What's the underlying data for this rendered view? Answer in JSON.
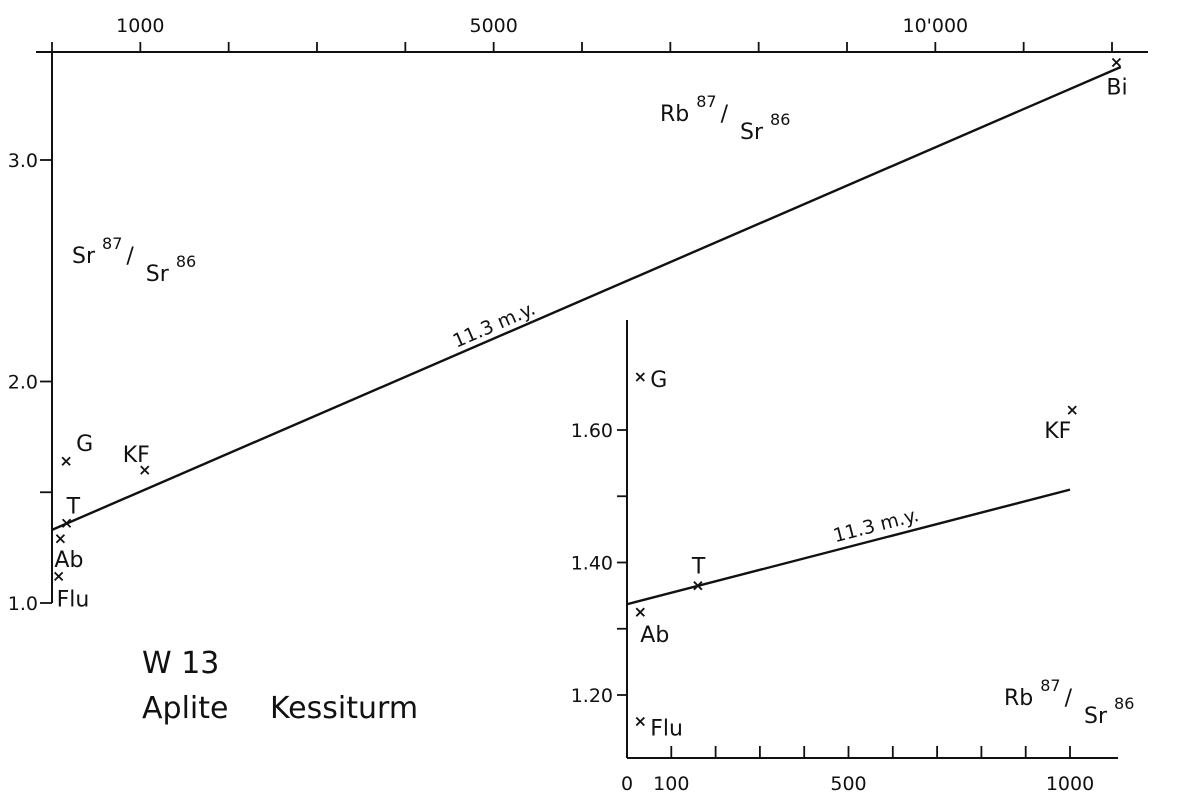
{
  "chart_data": [
    {
      "type": "scatter",
      "xlim": [
        0,
        12500
      ],
      "ylim": [
        1.0,
        3.5
      ],
      "x_tick_values": [
        0,
        1000,
        2000,
        3000,
        4000,
        5000,
        6000,
        7000,
        8000,
        9000,
        10000,
        11000,
        12000
      ],
      "x_tick_labels": {
        "1000": "1000",
        "5000": "5000",
        "10000": "10'000"
      },
      "y_tick_values": [
        1.0,
        1.5,
        2.0,
        3.0
      ],
      "y_tick_labels": {
        "1.0": "1.0",
        "2.0": "2.0",
        "3.0": "3.0"
      },
      "xlabel": {
        "main": "Rb",
        "sup": "87",
        "slash": "/",
        "den": "Sr",
        "den_sup": "86"
      },
      "ylabel": {
        "main": "Sr",
        "sup": "87",
        "slash": "/",
        "den": "Sr",
        "den_sup": "86"
      },
      "points": [
        {
          "label": "Bi",
          "x": 12050,
          "y": 3.44
        },
        {
          "label": "KF",
          "x": 1050,
          "y": 1.6
        },
        {
          "label": "G",
          "x": 160,
          "y": 1.64
        },
        {
          "label": "T",
          "x": 165,
          "y": 1.36
        },
        {
          "label": "Ab",
          "x": 95,
          "y": 1.29
        },
        {
          "label": "Flu",
          "x": 75,
          "y": 1.12
        }
      ],
      "isochron": {
        "label": "11.3 m.y.",
        "x": [
          0,
          12100
        ],
        "y": [
          1.33,
          3.42
        ]
      }
    },
    {
      "type": "scatter",
      "xlim": [
        0,
        1000
      ],
      "ylim": [
        1.1,
        1.8
      ],
      "x_tick_values": [
        0,
        100,
        200,
        300,
        400,
        500,
        600,
        700,
        800,
        900,
        1000
      ],
      "x_tick_labels": {
        "0": "0",
        "100": "100",
        "500": "500",
        "1000": "1000"
      },
      "y_tick_values": [
        1.2,
        1.3,
        1.4,
        1.5,
        1.6
      ],
      "y_tick_labels": {
        "1.2": "1.20",
        "1.4": "1.40",
        "1.6": "1.60"
      },
      "xlabel": {
        "main": "Rb",
        "sup": "87",
        "slash": "/",
        "den": "Sr",
        "den_sup": "86"
      },
      "points": [
        {
          "label": "G",
          "x": 30,
          "y": 1.68
        },
        {
          "label": "KF",
          "x": 1005,
          "y": 1.63
        },
        {
          "label": "T",
          "x": 160,
          "y": 1.365
        },
        {
          "label": "Ab",
          "x": 30,
          "y": 1.325
        },
        {
          "label": "Flu",
          "x": 30,
          "y": 1.16
        }
      ],
      "isochron": {
        "label": "11.3 m.y.",
        "x": [
          0,
          1000
        ],
        "y": [
          1.337,
          1.51
        ]
      }
    }
  ],
  "caption": {
    "line1": "W 13",
    "line2": "Aplite",
    "line3": "Kessiturm"
  }
}
